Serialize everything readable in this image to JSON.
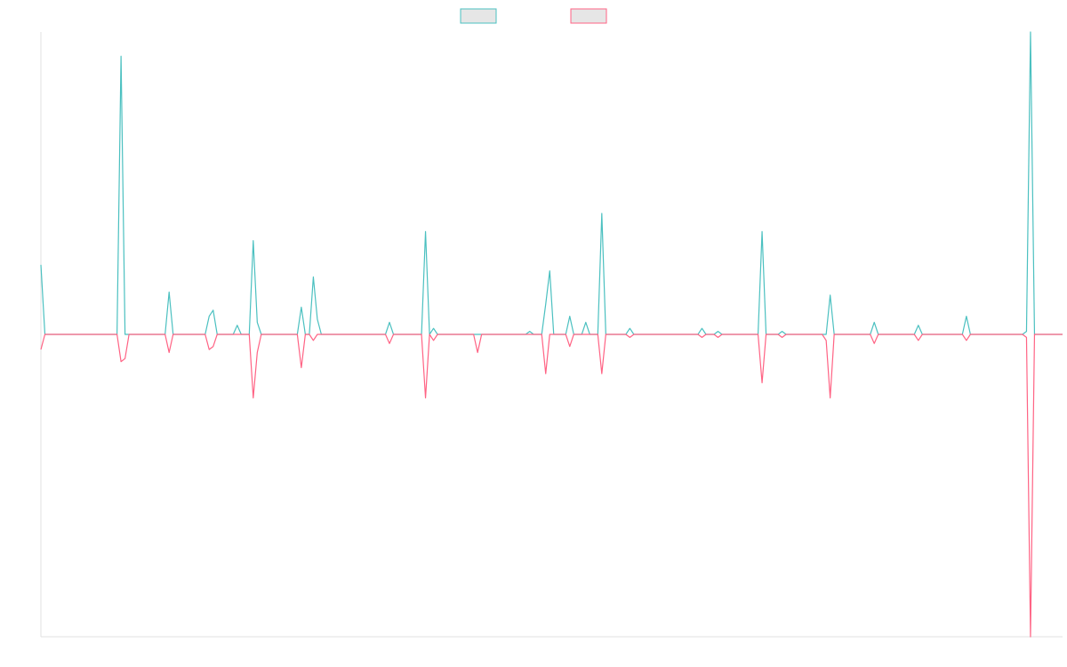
{
  "chart_data": {
    "type": "line",
    "x": [
      0,
      1,
      19,
      20,
      21,
      22,
      31,
      32,
      33,
      41,
      42,
      43,
      44,
      48,
      49,
      50,
      52,
      53,
      54,
      55,
      64,
      65,
      66,
      67,
      68,
      69,
      70,
      86,
      87,
      88,
      95,
      96,
      97,
      98,
      99,
      108,
      109,
      110,
      121,
      122,
      123,
      125,
      126,
      127,
      128,
      131,
      132,
      133,
      135,
      136,
      137,
      139,
      140,
      141,
      146,
      147,
      148,
      164,
      165,
      166,
      168,
      169,
      170,
      179,
      180,
      181,
      184,
      185,
      186,
      195,
      196,
      197,
      198,
      207,
      208,
      209,
      218,
      219,
      220,
      230,
      231,
      232,
      245,
      246,
      247,
      248,
      255
    ],
    "series": [
      {
        "color": "#4bc0c0",
        "values": [
          23,
          0,
          0,
          92,
          0,
          0,
          0,
          14,
          0,
          0,
          6,
          8,
          0,
          0,
          3,
          0,
          0,
          31,
          4,
          0,
          0,
          9,
          0,
          0,
          19,
          5,
          0,
          0,
          4,
          0,
          0,
          34,
          0,
          2,
          0,
          0,
          0,
          0,
          0,
          1,
          0,
          0,
          10,
          21,
          0,
          0,
          6,
          0,
          0,
          4,
          0,
          0,
          40,
          0,
          0,
          2,
          0,
          0,
          2,
          0,
          0,
          1,
          0,
          0,
          34,
          0,
          0,
          1,
          0,
          0,
          0,
          13,
          0,
          0,
          4,
          0,
          0,
          3,
          0,
          0,
          6,
          0,
          0,
          1,
          100,
          0,
          0
        ]
      },
      {
        "color": "#ff6384",
        "values": [
          -5,
          0,
          0,
          -9,
          -8,
          0,
          0,
          -6,
          0,
          0,
          -5,
          -4,
          0,
          0,
          0,
          0,
          0,
          -21,
          -6,
          0,
          0,
          -11,
          0,
          0,
          -2,
          0,
          0,
          0,
          -3,
          0,
          0,
          -21,
          0,
          -2,
          0,
          0,
          -6,
          0,
          0,
          0,
          0,
          0,
          -13,
          0,
          0,
          0,
          -4,
          0,
          0,
          0,
          0,
          0,
          -13,
          0,
          0,
          -1,
          0,
          0,
          -1,
          0,
          0,
          -1,
          0,
          0,
          -16,
          0,
          0,
          -1,
          0,
          0,
          -2,
          -21,
          0,
          0,
          -3,
          0,
          0,
          -2,
          0,
          0,
          -2,
          0,
          0,
          -1,
          -100,
          0,
          0
        ]
      }
    ],
    "xlim": [
      0,
      255
    ],
    "ylim": [
      -100,
      100
    ],
    "legend": "top"
  }
}
